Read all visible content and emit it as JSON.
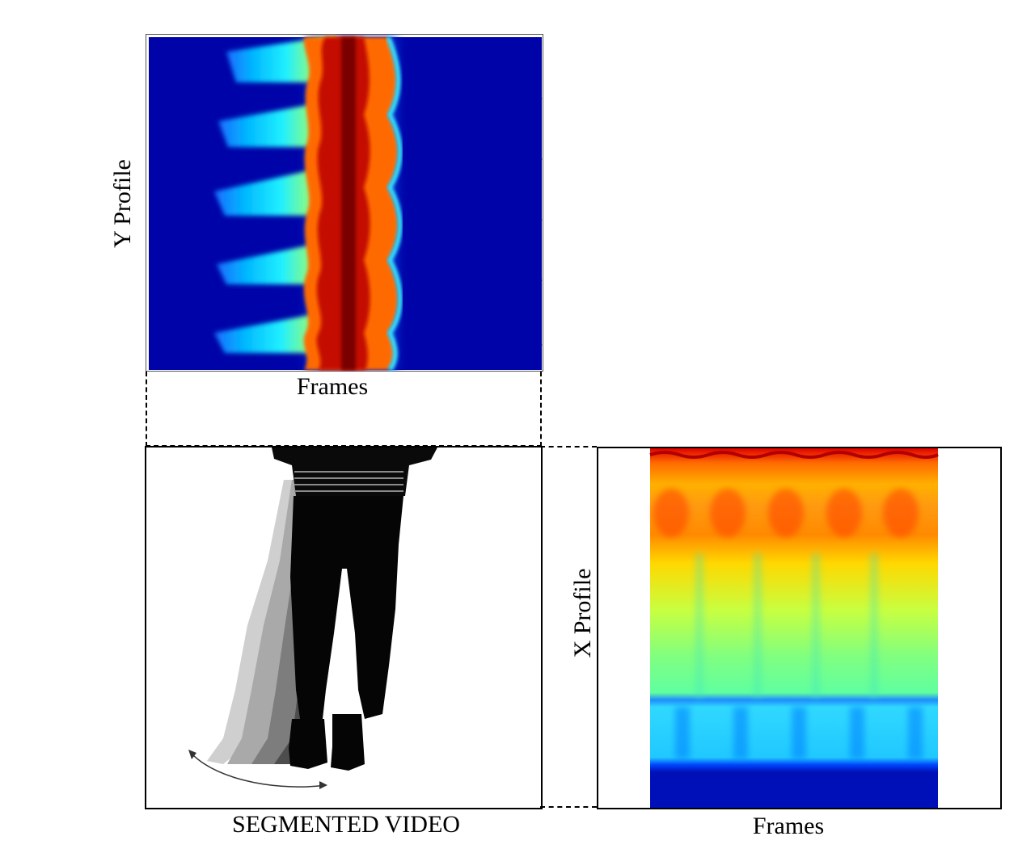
{
  "y_profile_panel": {
    "ylabel": "Y Profile",
    "xlabel": "Frames",
    "colormap": "jet"
  },
  "segmented_video_panel": {
    "caption": "SEGMENTED VIDEO"
  },
  "x_profile_panel": {
    "ylabel": "X Profile",
    "xlabel": "Frames",
    "colormap": "jet"
  },
  "colors": {
    "jet_dark_blue": "#00008f",
    "jet_blue": "#0050ff",
    "jet_cyan": "#00e5ff",
    "jet_green": "#7fff7f",
    "jet_yellow": "#ffe000",
    "jet_orange": "#ff7a00",
    "jet_red": "#d41000",
    "jet_dark_red": "#8a0000"
  }
}
